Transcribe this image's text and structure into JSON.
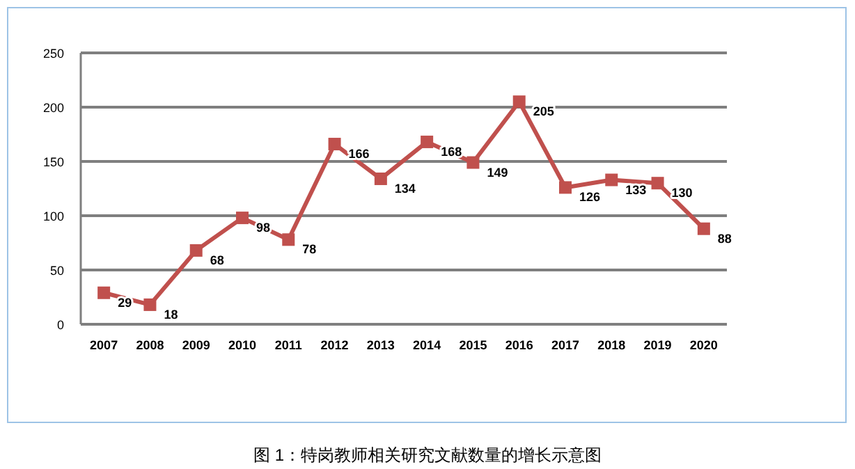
{
  "chart_data": {
    "type": "line",
    "title": "图 1：特岗教师相关研究文献数量的增长示意图",
    "categories": [
      "2007",
      "2008",
      "2009",
      "2010",
      "2011",
      "2012",
      "2013",
      "2014",
      "2015",
      "2016",
      "2017",
      "2018",
      "2019",
      "2020"
    ],
    "series": [
      {
        "color": "#c0504d",
        "values": [
          29,
          18,
          68,
          98,
          78,
          166,
          134,
          168,
          149,
          205,
          126,
          133,
          130,
          88
        ]
      }
    ],
    "ylim": [
      0,
      250
    ],
    "yticks": [
      0,
      50,
      100,
      150,
      200,
      250
    ],
    "grid": "y",
    "data_labels": true,
    "marker": "square",
    "line_style": "solid"
  }
}
